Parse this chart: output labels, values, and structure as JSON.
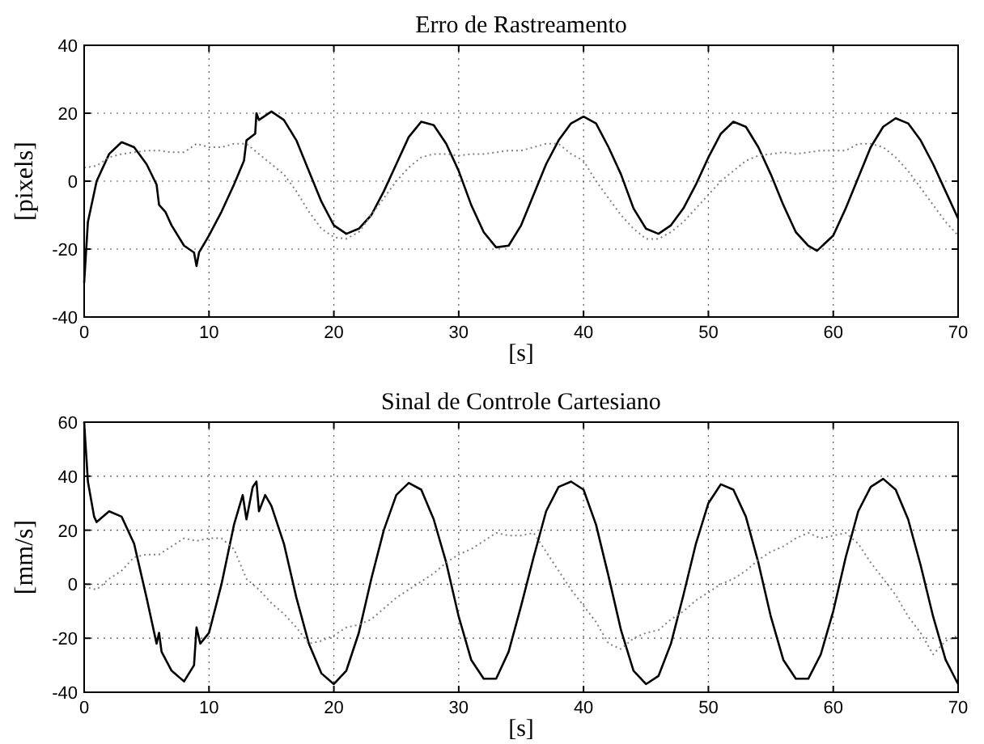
{
  "chart_data": [
    {
      "type": "line",
      "title": "Erro de Rastreamento",
      "xlabel": "[s]",
      "ylabel": "[pixels]",
      "xlim": [
        0,
        70
      ],
      "xticks": [
        0,
        10,
        20,
        30,
        40,
        50,
        60,
        70
      ],
      "ylim": [
        -40,
        40
      ],
      "yticks": [
        -40,
        -20,
        0,
        20,
        40
      ],
      "grid": true,
      "series": [
        {
          "color": "#000000",
          "line_style": "solid",
          "x": [
            0,
            0.3,
            1,
            2,
            3,
            4,
            5,
            5.8,
            6,
            6.5,
            7,
            8,
            8.8,
            9,
            9.2,
            10,
            11,
            12,
            12.8,
            13,
            13.7,
            13.8,
            14,
            15,
            16,
            17,
            18,
            19,
            20,
            21,
            22,
            23,
            24,
            25,
            26,
            27,
            28,
            29,
            30,
            31,
            32,
            33,
            34,
            35,
            36,
            37,
            38,
            39,
            40,
            41,
            42,
            43,
            44,
            45,
            46,
            47,
            48,
            49,
            50,
            51,
            52,
            53,
            54,
            55,
            56,
            57,
            58,
            58.7,
            60,
            61,
            62,
            63,
            64,
            65,
            66,
            67,
            68,
            69,
            70
          ],
          "values": [
            -30,
            -12,
            0,
            8,
            11.5,
            10,
            5,
            -1,
            -7,
            -9,
            -13,
            -19,
            -21,
            -25,
            -21,
            -16,
            -9,
            -1,
            6,
            12,
            14,
            20,
            18,
            20.5,
            18,
            12,
            3,
            -6,
            -13,
            -15.5,
            -14,
            -10,
            -3,
            5,
            13,
            17.5,
            16.5,
            11,
            3,
            -7,
            -15,
            -19.5,
            -19,
            -13,
            -4,
            5,
            12,
            17,
            19,
            17,
            10,
            2,
            -8,
            -14,
            -15.5,
            -13,
            -8,
            -1,
            7,
            14,
            17.5,
            16,
            10,
            2,
            -7,
            -15,
            -19,
            -20.5,
            -16,
            -8,
            1,
            10,
            16,
            18.5,
            17,
            12,
            5,
            -3,
            -11
          ]
        },
        {
          "color": "#808080",
          "line_style": "dotted",
          "x": [
            0,
            1,
            2,
            3,
            4,
            5,
            6,
            7,
            8,
            9,
            10,
            11,
            12,
            13,
            14,
            15,
            16,
            17,
            18,
            19,
            20,
            21,
            22,
            23,
            24,
            25,
            26,
            27,
            28,
            29,
            30,
            31,
            32,
            33,
            34,
            35,
            36,
            37,
            38,
            39,
            40,
            41,
            42,
            43,
            44,
            45,
            46,
            47,
            48,
            49,
            50,
            51,
            52,
            53,
            54,
            55,
            56,
            57,
            58,
            59,
            60,
            61,
            62,
            63,
            64,
            65,
            66,
            67,
            68,
            69,
            70
          ],
          "values": [
            4,
            4.5,
            7,
            8,
            8.5,
            9,
            9,
            8.5,
            8.5,
            11,
            10,
            10,
            11,
            11,
            8,
            5,
            2,
            -3,
            -9,
            -14,
            -16.5,
            -17,
            -15,
            -10,
            -5,
            0,
            4,
            7,
            8,
            8,
            7.5,
            8,
            8,
            8.5,
            9,
            9,
            10,
            11,
            11,
            8,
            6,
            0,
            -5,
            -10,
            -14,
            -17,
            -17,
            -15,
            -12,
            -8,
            -4,
            0,
            3,
            6,
            7.5,
            8,
            8.5,
            8,
            8.5,
            9,
            9,
            9,
            11,
            11,
            10,
            7,
            3,
            -2,
            -7,
            -12,
            -16
          ]
        }
      ]
    },
    {
      "type": "line",
      "title": "Sinal de Controle Cartesiano",
      "xlabel": "[s]",
      "ylabel": "[mm/s]",
      "xlim": [
        0,
        70
      ],
      "xticks": [
        0,
        10,
        20,
        30,
        40,
        50,
        60,
        70
      ],
      "ylim": [
        -40,
        60
      ],
      "yticks": [
        -40,
        -20,
        0,
        20,
        40,
        60
      ],
      "grid": true,
      "series": [
        {
          "color": "#000000",
          "line_style": "solid",
          "x": [
            0,
            0.3,
            0.8,
            1,
            2,
            3,
            4,
            5,
            5.8,
            6,
            6.2,
            7,
            8,
            8.8,
            9,
            9.3,
            10,
            11,
            12,
            12.7,
            13,
            13.5,
            13.8,
            14,
            14.5,
            15,
            16,
            17,
            18,
            19,
            20,
            21,
            22,
            23,
            24,
            25,
            26,
            27,
            28,
            29,
            30,
            31,
            32,
            33,
            34,
            35,
            36,
            37,
            38,
            39,
            40,
            41,
            42,
            43,
            44,
            45,
            46,
            47,
            48,
            49,
            50,
            51,
            52,
            53,
            54,
            55,
            56,
            57,
            58,
            59,
            60,
            61,
            62,
            63,
            64,
            65,
            66,
            67,
            68,
            69,
            70
          ],
          "values": [
            60,
            38,
            25,
            23,
            27,
            25,
            15,
            -5,
            -22,
            -18,
            -25,
            -32,
            -36,
            -30,
            -16,
            -22,
            -18,
            0,
            22,
            33,
            24,
            36,
            38,
            27,
            33,
            29,
            15,
            -5,
            -22,
            -33,
            -37,
            -32,
            -18,
            2,
            20,
            33,
            37.5,
            35,
            24,
            8,
            -12,
            -28,
            -35,
            -35,
            -25,
            -8,
            10,
            27,
            36,
            38,
            35,
            22,
            3,
            -17,
            -32,
            -37,
            -34,
            -22,
            -4,
            15,
            30,
            37,
            35,
            25,
            8,
            -12,
            -28,
            -35,
            -35,
            -26,
            -10,
            10,
            27,
            36,
            39,
            35,
            24,
            7,
            -12,
            -28,
            -37
          ]
        },
        {
          "color": "#808080",
          "line_style": "dotted",
          "x": [
            0,
            1,
            2,
            3,
            4,
            5,
            6,
            7,
            8,
            9,
            10,
            11,
            12,
            13,
            14,
            15,
            16,
            17,
            18,
            19,
            20,
            21,
            22,
            23,
            24,
            25,
            26,
            27,
            28,
            29,
            30,
            31,
            32,
            33,
            34,
            35,
            36,
            37,
            38,
            39,
            40,
            41,
            42,
            43,
            44,
            45,
            46,
            47,
            48,
            49,
            50,
            51,
            52,
            53,
            54,
            55,
            56,
            57,
            58,
            59,
            60,
            61,
            62,
            63,
            64,
            65,
            66,
            67,
            68,
            69,
            70
          ],
          "values": [
            -1,
            -2,
            2,
            5,
            10,
            11,
            11,
            14,
            17,
            16,
            17,
            17,
            13,
            2,
            -2,
            -7,
            -11,
            -16,
            -22,
            -21,
            -19,
            -16,
            -15,
            -13,
            -9,
            -5,
            -2,
            1,
            4,
            8,
            11,
            13,
            16,
            19,
            18,
            18,
            19,
            12,
            5,
            -2,
            -8,
            -14,
            -22,
            -24,
            -20,
            -18,
            -17,
            -13,
            -10,
            -6,
            -3,
            0,
            2,
            5,
            9,
            12,
            14,
            17,
            19,
            17,
            18,
            19,
            15,
            8,
            2,
            -4,
            -12,
            -18,
            -26,
            -21,
            -19
          ]
        }
      ]
    }
  ]
}
